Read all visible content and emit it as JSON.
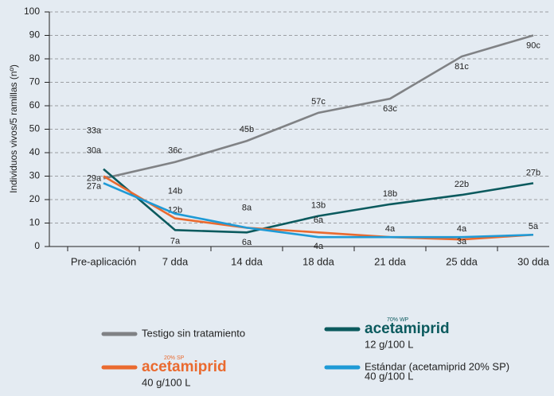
{
  "chart_data": {
    "type": "line",
    "ylabel": "Individuos vivos/5 ramillas (nº)",
    "categories": [
      "Pre-aplicación",
      "7 dda",
      "14 dda",
      "18 dda",
      "21 dda",
      "25 dda",
      "30 dda"
    ],
    "ylim": [
      0,
      100
    ],
    "yticks": [
      0,
      10,
      20,
      30,
      40,
      50,
      60,
      70,
      80,
      90,
      100
    ],
    "grid": true,
    "series": [
      {
        "name": "Testigo sin tratamiento",
        "color": "#808285",
        "values": [
          29,
          36,
          45,
          57,
          63,
          81,
          90
        ],
        "value_labels": [
          "29a",
          "36c",
          "45b",
          "57c",
          "63c",
          "81c",
          "90c"
        ]
      },
      {
        "name": "acetamiprid",
        "badge": "70% WP",
        "dose": "12 g/100 L",
        "color": "#0b5a5e",
        "values": [
          33,
          7,
          6,
          13,
          18,
          22,
          27
        ],
        "value_labels": [
          "33a",
          "7a",
          "6a",
          "13b",
          "18b",
          "22b",
          "27b"
        ]
      },
      {
        "name": "acetamiprid",
        "badge": "20% SP",
        "dose": "40 g/100 L",
        "color": "#ea6a2f",
        "values": [
          30,
          12,
          8,
          6,
          4,
          3,
          5
        ],
        "value_labels": [
          "30a",
          "12b",
          "8a",
          "6a",
          "4a",
          "3a",
          "5a"
        ]
      },
      {
        "name": "Estándar (acetamiprid 20% SP)",
        "dose": "40 g/100 L",
        "color": "#1e9ad6",
        "values": [
          27,
          14,
          8,
          4,
          4,
          4,
          5
        ],
        "value_labels": [
          "27a",
          "14b",
          null,
          "4a",
          null,
          "4a",
          null
        ]
      }
    ]
  }
}
